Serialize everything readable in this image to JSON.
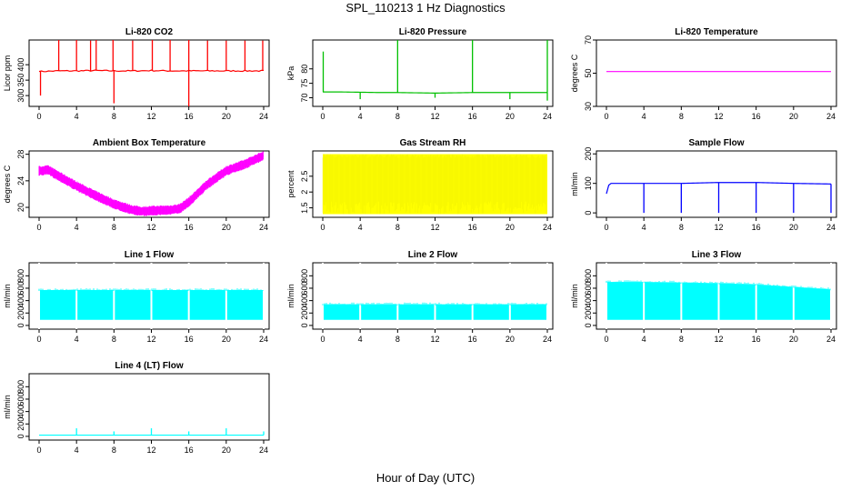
{
  "figure": {
    "title": "SPL_110213  1 Hz Diagnostics",
    "xlabel": "Hour of Day (UTC)"
  },
  "chart_data": [
    {
      "type": "line",
      "title": "Li-820 CO2",
      "ylabel": "Licor ppm",
      "color": "#ff0000",
      "xlim": [
        0,
        24
      ],
      "xticks": [
        0,
        4,
        8,
        12,
        16,
        20,
        24
      ],
      "ylim": [
        265,
        480
      ],
      "yticks": [
        300,
        350,
        400
      ],
      "x": [
        0,
        0.2,
        2,
        4,
        6,
        8,
        10,
        12,
        14,
        16,
        18,
        20,
        22,
        24
      ],
      "values": [
        380,
        378,
        380,
        380,
        381,
        380,
        380,
        381,
        380,
        380,
        380,
        380,
        380,
        380
      ],
      "spikes_high": [
        [
          2.1,
          480
        ],
        [
          4,
          480
        ],
        [
          5.5,
          478
        ],
        [
          6.1,
          480
        ],
        [
          7.9,
          480
        ],
        [
          10,
          478
        ],
        [
          12.1,
          480
        ],
        [
          14,
          480
        ],
        [
          16,
          480
        ],
        [
          18,
          478
        ],
        [
          20,
          478
        ],
        [
          22,
          478
        ],
        [
          23.9,
          478
        ]
      ],
      "spikes_low": [
        [
          0.15,
          300
        ],
        [
          8,
          275
        ],
        [
          16,
          258
        ]
      ]
    },
    {
      "type": "line",
      "title": "Li-820 Pressure",
      "ylabel": "kPa",
      "color": "#00c000",
      "xlim": [
        0,
        24
      ],
      "xticks": [
        0,
        4,
        8,
        12,
        16,
        20,
        24
      ],
      "ylim": [
        67,
        90
      ],
      "yticks": [
        70,
        75,
        80
      ],
      "x": [
        0,
        0.3,
        2,
        4,
        6,
        8,
        10,
        12,
        14,
        16,
        18,
        20,
        22,
        24
      ],
      "values": [
        72,
        72,
        72,
        71.9,
        71.8,
        71.8,
        71.7,
        71.6,
        71.7,
        71.8,
        71.8,
        71.8,
        71.8,
        71.8
      ],
      "spikes_high": [
        [
          0.05,
          86
        ],
        [
          8,
          90
        ],
        [
          16,
          90
        ],
        [
          24,
          90
        ]
      ],
      "spikes_low": [
        [
          4,
          69.5
        ],
        [
          12,
          70
        ],
        [
          20,
          69.5
        ],
        [
          24,
          69
        ]
      ]
    },
    {
      "type": "line",
      "title": "Li-820 Temperature",
      "ylabel": "degrees C",
      "color": "#ff00ff",
      "xlim": [
        0,
        24
      ],
      "xticks": [
        0,
        4,
        8,
        12,
        16,
        20,
        24
      ],
      "ylim": [
        30,
        70
      ],
      "yticks": [
        30,
        50,
        70
      ],
      "x": [
        0,
        24
      ],
      "values": [
        51,
        51
      ]
    },
    {
      "type": "line",
      "title": "Ambient Box Temperature",
      "ylabel": "degrees C",
      "color": "#ff00ff",
      "xlim": [
        0,
        24
      ],
      "xticks": [
        0,
        4,
        8,
        12,
        16,
        20,
        24
      ],
      "ylim": [
        18.5,
        28.5
      ],
      "yticks": [
        20,
        24,
        28
      ],
      "x": [
        0,
        1,
        2,
        4,
        6,
        8,
        10,
        11,
        12,
        14,
        15,
        16,
        18,
        20,
        22,
        24
      ],
      "values": [
        25.5,
        25.6,
        24.8,
        23.2,
        21.8,
        20.5,
        19.6,
        19.4,
        19.5,
        19.6,
        19.8,
        20.8,
        23.5,
        25.5,
        26.5,
        27.8
      ]
    },
    {
      "type": "area",
      "title": "Gas Stream RH",
      "ylabel": "percent",
      "color": "#ffff00",
      "xlim": [
        0,
        24
      ],
      "xticks": [
        0,
        4,
        8,
        12,
        16,
        20,
        24
      ],
      "ylim": [
        1.2,
        3.3
      ],
      "yticks": [
        1.5,
        2.0,
        2.5
      ],
      "x": [
        0,
        24
      ],
      "upper": [
        3.2,
        3.2
      ],
      "lower": [
        1.3,
        1.3
      ]
    },
    {
      "type": "line",
      "title": "Sample Flow",
      "ylabel": "ml/min",
      "color": "#0000ff",
      "xlim": [
        0,
        24
      ],
      "xticks": [
        0,
        4,
        8,
        12,
        16,
        20,
        24
      ],
      "ylim": [
        -15,
        210
      ],
      "yticks": [
        0,
        100,
        200
      ],
      "x": [
        0,
        0.3,
        4,
        8,
        12,
        16,
        20,
        24
      ],
      "values": [
        65,
        100,
        100,
        100,
        103,
        103,
        100,
        98
      ],
      "spikes_low": [
        [
          4,
          0
        ],
        [
          8,
          0
        ],
        [
          12,
          0
        ],
        [
          16,
          0
        ],
        [
          20,
          0
        ],
        [
          24,
          0
        ]
      ]
    },
    {
      "type": "area",
      "title": "Line 1 Flow",
      "ylabel": "ml/min",
      "color": "#00ffff",
      "xlim": [
        0,
        24
      ],
      "xticks": [
        0,
        4,
        8,
        12,
        16,
        20,
        24
      ],
      "ylim": [
        -60,
        1010
      ],
      "yticks": [
        0,
        200,
        400,
        600,
        800
      ],
      "x": [
        0,
        24
      ],
      "upper": [
        570,
        570
      ],
      "lower": [
        90,
        90
      ]
    },
    {
      "type": "area",
      "title": "Line 2 Flow",
      "ylabel": "ml/min",
      "color": "#00ffff",
      "xlim": [
        0,
        24
      ],
      "xticks": [
        0,
        4,
        8,
        12,
        16,
        20,
        24
      ],
      "ylim": [
        -60,
        1010
      ],
      "yticks": [
        0,
        200,
        400,
        600,
        800
      ],
      "x": [
        0,
        24
      ],
      "upper": [
        340,
        340
      ],
      "lower": [
        90,
        90
      ]
    },
    {
      "type": "area",
      "title": "Line 3 Flow",
      "ylabel": "ml/min",
      "color": "#00ffff",
      "xlim": [
        0,
        24
      ],
      "xticks": [
        0,
        4,
        8,
        12,
        16,
        20,
        24
      ],
      "ylim": [
        -60,
        1010
      ],
      "yticks": [
        0,
        200,
        400,
        600,
        800
      ],
      "x": [
        0,
        4,
        8,
        12,
        16,
        20,
        24
      ],
      "upper": [
        700,
        700,
        690,
        680,
        660,
        620,
        580
      ],
      "lower": [
        90,
        90,
        90,
        90,
        90,
        90,
        90
      ]
    },
    {
      "type": "line",
      "title": "Line 4 (LT) Flow",
      "ylabel": "ml/min",
      "color": "#00ffff",
      "xlim": [
        0,
        24
      ],
      "xticks": [
        0,
        4,
        8,
        12,
        16,
        20,
        24
      ],
      "ylim": [
        -60,
        1010
      ],
      "yticks": [
        0,
        200,
        400,
        600,
        800
      ],
      "x": [
        0,
        24
      ],
      "values": [
        20,
        20
      ],
      "spikes_high": [
        [
          4,
          130
        ],
        [
          8,
          80
        ],
        [
          12,
          130
        ],
        [
          16,
          80
        ],
        [
          20,
          130
        ],
        [
          24,
          80
        ]
      ]
    }
  ]
}
